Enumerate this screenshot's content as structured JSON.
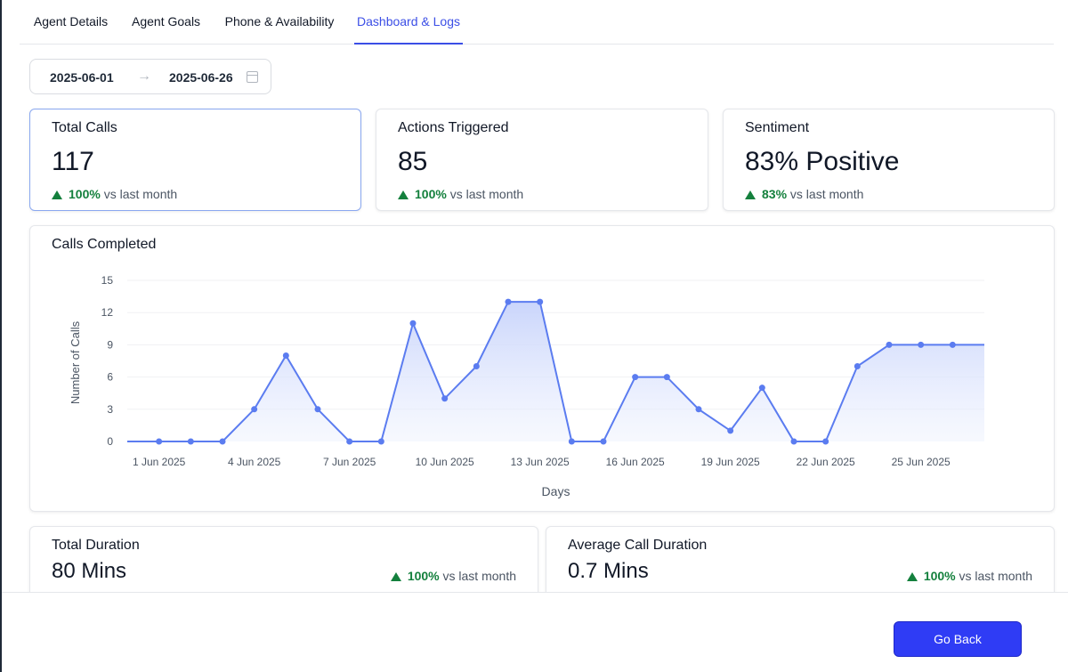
{
  "tabs": [
    {
      "label": "Agent Details"
    },
    {
      "label": "Agent Goals"
    },
    {
      "label": "Phone & Availability"
    },
    {
      "label": "Dashboard & Logs"
    }
  ],
  "active_tab": "Dashboard & Logs",
  "date_range": {
    "start": "2025-06-01",
    "arrow": "→",
    "end": "2025-06-26"
  },
  "stats": [
    {
      "title": "Total Calls",
      "value": "117",
      "change": "100%",
      "change_label": "vs last month"
    },
    {
      "title": "Actions Triggered",
      "value": "85",
      "change": "100%",
      "change_label": "vs last month"
    },
    {
      "title": "Sentiment",
      "value": "83% Positive",
      "change": "83%",
      "change_label": "vs last month"
    }
  ],
  "chart_title": "Calls Completed",
  "chart_data": {
    "type": "area",
    "title": "Calls Completed",
    "xlabel": "Days",
    "ylabel": "Number of Calls",
    "ylim": [
      0,
      15
    ],
    "yticks": [
      0,
      3,
      6,
      9,
      12,
      15
    ],
    "x_start_day": 0,
    "x_end_day": 27,
    "x": [
      "1 Jun 2025",
      "2 Jun 2025",
      "3 Jun 2025",
      "4 Jun 2025",
      "5 Jun 2025",
      "6 Jun 2025",
      "7 Jun 2025",
      "8 Jun 2025",
      "9 Jun 2025",
      "10 Jun 2025",
      "11 Jun 2025",
      "12 Jun 2025",
      "13 Jun 2025",
      "14 Jun 2025",
      "15 Jun 2025",
      "16 Jun 2025",
      "17 Jun 2025",
      "18 Jun 2025",
      "19 Jun 2025",
      "20 Jun 2025",
      "21 Jun 2025",
      "22 Jun 2025",
      "23 Jun 2025",
      "24 Jun 2025",
      "25 Jun 2025",
      "26 Jun 2025"
    ],
    "values": [
      0,
      0,
      0,
      3,
      8,
      3,
      0,
      0,
      11,
      4,
      7,
      13,
      13,
      0,
      0,
      6,
      6,
      3,
      1,
      5,
      0,
      0,
      7,
      9,
      9,
      9
    ],
    "xtick_labels": [
      "1 Jun 2025",
      "4 Jun 2025",
      "7 Jun 2025",
      "10 Jun 2025",
      "13 Jun 2025",
      "16 Jun 2025",
      "19 Jun 2025",
      "22 Jun 2025",
      "25 Jun 2025"
    ],
    "grid": true,
    "line_color": "#5b7cf0",
    "fill_color": "#c7d3fb"
  },
  "durations": [
    {
      "title": "Total Duration",
      "value": "80 Mins",
      "change": "100%",
      "change_label": "vs last month"
    },
    {
      "title": "Average Call Duration",
      "value": "0.7 Mins",
      "change": "100%",
      "change_label": "vs last month"
    }
  ],
  "footer": {
    "go_back_label": "Go Back"
  },
  "colors": {
    "accent": "#3b4ee6",
    "button": "#2f3cf5",
    "positive": "#14803d"
  }
}
